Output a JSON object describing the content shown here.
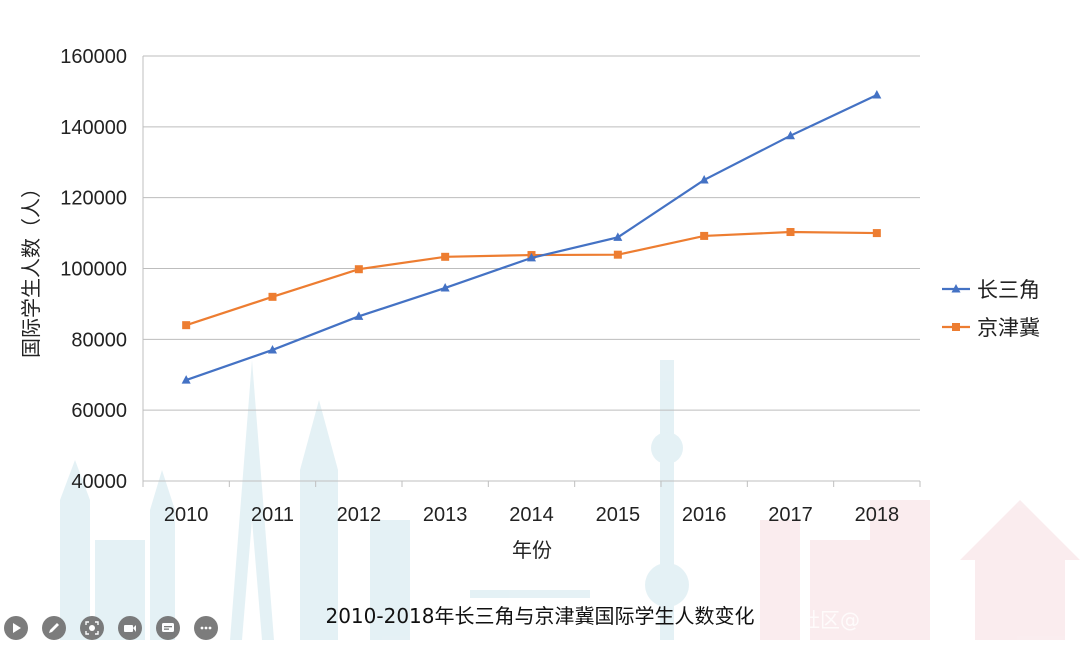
{
  "chart_data": {
    "type": "line",
    "title": "2010-2018年长三角与京津冀国际学生人数变化",
    "xlabel": "年份",
    "ylabel": "国际学生人数（人）",
    "categories": [
      "2010",
      "2011",
      "2012",
      "2013",
      "2014",
      "2015",
      "2016",
      "2017",
      "2018"
    ],
    "ylim": [
      40000,
      160000
    ],
    "yticks": [
      "40000",
      "60000",
      "80000",
      "100000",
      "120000",
      "140000",
      "160000"
    ],
    "grid": true,
    "legend_position": "right",
    "series": [
      {
        "name": "长三角",
        "color": "#4472C4",
        "marker": "triangle",
        "values": [
          68500,
          77000,
          86500,
          94500,
          103000,
          108800,
          125000,
          137500,
          149000
        ]
      },
      {
        "name": "京津冀",
        "color": "#ED7D31",
        "marker": "square",
        "values": [
          84000,
          92000,
          99800,
          103300,
          103800,
          103900,
          109200,
          110300,
          110000
        ]
      }
    ]
  },
  "watermark": "社区@",
  "toolbar": {
    "icons": [
      "play-icon",
      "pen-icon",
      "focus-icon",
      "camera-icon",
      "caption-icon",
      "more-icon"
    ]
  }
}
